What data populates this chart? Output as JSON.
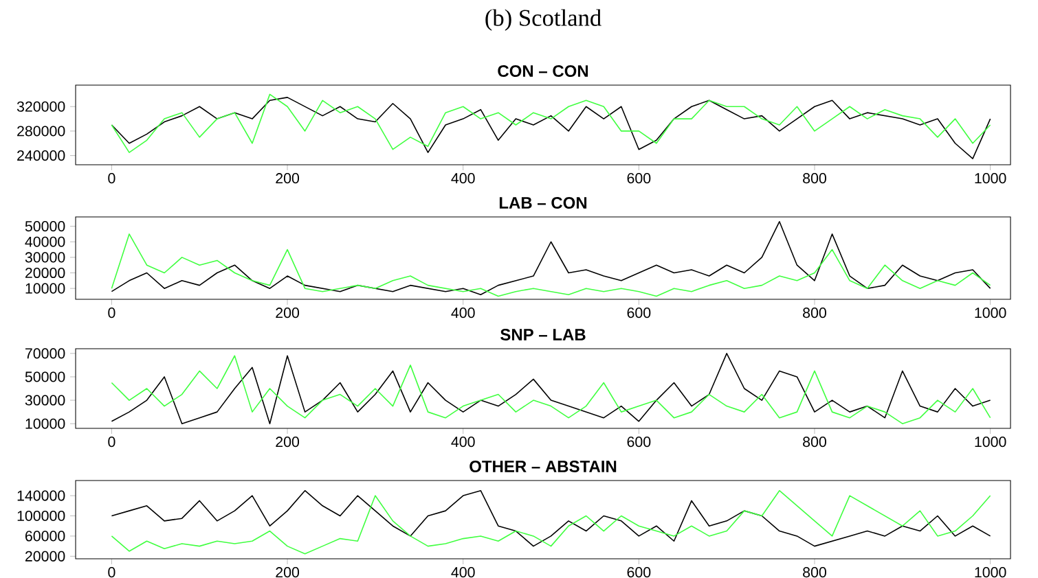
{
  "chart_data": [
    {
      "type": "line",
      "title": "CON – CON",
      "annotations": [
        "(b) Scotland"
      ],
      "x": [
        0,
        20,
        40,
        60,
        80,
        100,
        120,
        140,
        160,
        180,
        200,
        220,
        240,
        260,
        280,
        300,
        320,
        340,
        360,
        380,
        400,
        420,
        440,
        460,
        480,
        500,
        520,
        540,
        560,
        580,
        600,
        620,
        640,
        660,
        680,
        700,
        720,
        740,
        760,
        780,
        800,
        820,
        840,
        860,
        880,
        900,
        920,
        940,
        960,
        980,
        1000
      ],
      "xlim": [
        -41,
        1023
      ],
      "xticks": [
        0,
        200,
        400,
        600,
        800,
        1000
      ],
      "ylim": [
        225000,
        355000
      ],
      "yticks": [
        240000,
        280000,
        320000
      ],
      "series": [
        {
          "color": "#000000",
          "values": [
            290000,
            260000,
            275000,
            295000,
            305000,
            320000,
            300000,
            310000,
            300000,
            330000,
            335000,
            320000,
            305000,
            320000,
            300000,
            295000,
            325000,
            300000,
            245000,
            290000,
            300000,
            315000,
            265000,
            300000,
            290000,
            305000,
            280000,
            320000,
            300000,
            320000,
            250000,
            265000,
            300000,
            320000,
            330000,
            315000,
            300000,
            305000,
            280000,
            300000,
            320000,
            330000,
            300000,
            310000,
            305000,
            300000,
            290000,
            300000,
            260000,
            235000,
            300000
          ]
        },
        {
          "color": "#40ff40",
          "values": [
            290000,
            245000,
            265000,
            300000,
            310000,
            270000,
            300000,
            310000,
            260000,
            340000,
            320000,
            280000,
            330000,
            310000,
            320000,
            300000,
            250000,
            270000,
            255000,
            310000,
            320000,
            300000,
            310000,
            290000,
            310000,
            300000,
            320000,
            330000,
            320000,
            280000,
            280000,
            260000,
            300000,
            300000,
            330000,
            320000,
            320000,
            300000,
            290000,
            320000,
            280000,
            300000,
            320000,
            300000,
            315000,
            305000,
            300000,
            270000,
            300000,
            260000,
            290000
          ]
        }
      ]
    },
    {
      "type": "line",
      "title": "LAB – CON",
      "x": [
        0,
        20,
        40,
        60,
        80,
        100,
        120,
        140,
        160,
        180,
        200,
        220,
        240,
        260,
        280,
        300,
        320,
        340,
        360,
        380,
        400,
        420,
        440,
        460,
        480,
        500,
        520,
        540,
        560,
        580,
        600,
        620,
        640,
        660,
        680,
        700,
        720,
        740,
        760,
        780,
        800,
        820,
        840,
        860,
        880,
        900,
        920,
        940,
        960,
        980,
        1000
      ],
      "xlim": [
        -41,
        1023
      ],
      "xticks": [
        0,
        200,
        400,
        600,
        800,
        1000
      ],
      "ylim": [
        3000,
        56000
      ],
      "yticks": [
        10000,
        20000,
        30000,
        40000,
        50000
      ],
      "series": [
        {
          "color": "#000000",
          "values": [
            8000,
            15000,
            20000,
            10000,
            15000,
            12000,
            20000,
            25000,
            15000,
            10000,
            18000,
            12000,
            10000,
            8000,
            12000,
            10000,
            8000,
            12000,
            10000,
            8000,
            10000,
            6000,
            12000,
            15000,
            18000,
            40000,
            20000,
            22000,
            18000,
            15000,
            20000,
            25000,
            20000,
            22000,
            18000,
            25000,
            20000,
            30000,
            53000,
            25000,
            15000,
            45000,
            18000,
            10000,
            12000,
            25000,
            18000,
            15000,
            20000,
            22000,
            10000
          ]
        },
        {
          "color": "#40ff40",
          "values": [
            10000,
            45000,
            25000,
            20000,
            30000,
            25000,
            28000,
            20000,
            15000,
            12000,
            35000,
            10000,
            8000,
            10000,
            12000,
            10000,
            15000,
            18000,
            12000,
            10000,
            8000,
            10000,
            5000,
            8000,
            10000,
            8000,
            6000,
            10000,
            8000,
            10000,
            8000,
            5000,
            10000,
            8000,
            12000,
            15000,
            10000,
            12000,
            18000,
            15000,
            20000,
            35000,
            15000,
            10000,
            25000,
            15000,
            10000,
            15000,
            12000,
            20000,
            12000
          ]
        }
      ]
    },
    {
      "type": "line",
      "title": "SNP – LAB",
      "x": [
        0,
        20,
        40,
        60,
        80,
        100,
        120,
        140,
        160,
        180,
        200,
        220,
        240,
        260,
        280,
        300,
        320,
        340,
        360,
        380,
        400,
        420,
        440,
        460,
        480,
        500,
        520,
        540,
        560,
        580,
        600,
        620,
        640,
        660,
        680,
        700,
        720,
        740,
        760,
        780,
        800,
        820,
        840,
        860,
        880,
        900,
        920,
        940,
        960,
        980,
        1000
      ],
      "xlim": [
        -41,
        1023
      ],
      "xticks": [
        0,
        200,
        400,
        600,
        800,
        1000
      ],
      "ylim": [
        6000,
        74000
      ],
      "yticks": [
        10000,
        30000,
        50000,
        70000
      ],
      "series": [
        {
          "color": "#000000",
          "values": [
            12000,
            20000,
            30000,
            50000,
            10000,
            15000,
            20000,
            40000,
            58000,
            10000,
            68000,
            20000,
            30000,
            45000,
            20000,
            35000,
            55000,
            20000,
            45000,
            30000,
            20000,
            30000,
            25000,
            35000,
            48000,
            30000,
            25000,
            20000,
            15000,
            25000,
            12000,
            30000,
            45000,
            25000,
            35000,
            70000,
            40000,
            30000,
            55000,
            50000,
            20000,
            30000,
            20000,
            25000,
            15000,
            55000,
            25000,
            20000,
            40000,
            25000,
            30000
          ]
        },
        {
          "color": "#40ff40",
          "values": [
            45000,
            30000,
            40000,
            25000,
            35000,
            55000,
            40000,
            68000,
            20000,
            40000,
            25000,
            15000,
            30000,
            35000,
            25000,
            40000,
            25000,
            60000,
            20000,
            15000,
            25000,
            30000,
            35000,
            20000,
            30000,
            25000,
            15000,
            25000,
            45000,
            20000,
            25000,
            30000,
            15000,
            20000,
            35000,
            25000,
            20000,
            35000,
            15000,
            20000,
            55000,
            20000,
            15000,
            25000,
            20000,
            10000,
            15000,
            30000,
            20000,
            40000,
            15000
          ]
        }
      ]
    },
    {
      "type": "line",
      "title": "OTHER – ABSTAIN",
      "x": [
        0,
        20,
        40,
        60,
        80,
        100,
        120,
        140,
        160,
        180,
        200,
        220,
        240,
        260,
        280,
        300,
        320,
        340,
        360,
        380,
        400,
        420,
        440,
        460,
        480,
        500,
        520,
        540,
        560,
        580,
        600,
        620,
        640,
        660,
        680,
        700,
        720,
        740,
        760,
        780,
        800,
        820,
        840,
        860,
        880,
        900,
        920,
        940,
        960,
        980,
        1000
      ],
      "xlim": [
        -41,
        1023
      ],
      "xticks": [
        0,
        200,
        400,
        600,
        800,
        1000
      ],
      "ylim": [
        15000,
        170000
      ],
      "yticks": [
        20000,
        60000,
        100000,
        140000
      ],
      "series": [
        {
          "color": "#000000",
          "values": [
            100000,
            110000,
            120000,
            90000,
            95000,
            130000,
            90000,
            110000,
            140000,
            80000,
            110000,
            150000,
            120000,
            100000,
            140000,
            110000,
            80000,
            60000,
            100000,
            110000,
            140000,
            150000,
            80000,
            70000,
            40000,
            60000,
            90000,
            70000,
            100000,
            90000,
            60000,
            80000,
            50000,
            130000,
            80000,
            90000,
            110000,
            100000,
            70000,
            60000,
            40000,
            50000,
            60000,
            70000,
            60000,
            80000,
            70000,
            100000,
            60000,
            80000,
            60000
          ]
        },
        {
          "color": "#40ff40",
          "values": [
            60000,
            30000,
            50000,
            35000,
            45000,
            40000,
            50000,
            45000,
            50000,
            70000,
            40000,
            25000,
            40000,
            55000,
            50000,
            140000,
            90000,
            60000,
            40000,
            45000,
            55000,
            60000,
            50000,
            70000,
            60000,
            40000,
            80000,
            100000,
            70000,
            100000,
            80000,
            70000,
            60000,
            80000,
            60000,
            70000,
            110000,
            100000,
            150000,
            120000,
            90000,
            60000,
            140000,
            120000,
            100000,
            80000,
            110000,
            60000,
            70000,
            100000,
            140000
          ]
        }
      ]
    }
  ]
}
